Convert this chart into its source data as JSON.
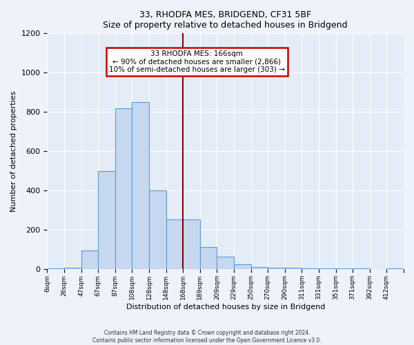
{
  "title": "33, RHODFA MES, BRIDGEND, CF31 5BF",
  "subtitle": "Size of property relative to detached houses in Bridgend",
  "xlabel": "Distribution of detached houses by size in Bridgend",
  "ylabel": "Number of detached properties",
  "footer_line1": "Contains HM Land Registry data © Crown copyright and database right 2024.",
  "footer_line2": "Contains public sector information licensed under the Open Government Licence v3.0.",
  "bar_labels": [
    "6sqm",
    "26sqm",
    "47sqm",
    "67sqm",
    "87sqm",
    "108sqm",
    "128sqm",
    "148sqm",
    "168sqm",
    "189sqm",
    "209sqm",
    "229sqm",
    "250sqm",
    "270sqm",
    "290sqm",
    "311sqm",
    "331sqm",
    "351sqm",
    "371sqm",
    "392sqm",
    "412sqm"
  ],
  "bar_values": [
    5,
    10,
    95,
    500,
    820,
    850,
    400,
    255,
    255,
    115,
    65,
    25,
    12,
    10,
    8,
    5,
    5,
    5,
    5,
    0,
    5
  ],
  "bar_color": "#c5d8ef",
  "bar_edge_color": "#5b9bd5",
  "vline_color": "#8B0000",
  "annotation_title": "33 RHODFA MES: 166sqm",
  "annotation_line1": "← 90% of detached houses are smaller (2,866)",
  "annotation_line2": "10% of semi-detached houses are larger (303) →",
  "annotation_box_edge": "#cc0000",
  "ylim_min": 0,
  "ylim_max": 1200,
  "yticks": [
    0,
    200,
    400,
    600,
    800,
    1000,
    1200
  ],
  "property_sqm": 166,
  "num_bins": 21,
  "bin_size": 20
}
